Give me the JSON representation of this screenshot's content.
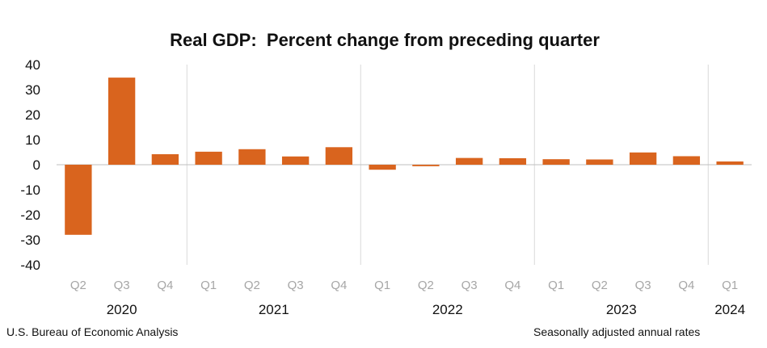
{
  "chart_data": {
    "type": "bar",
    "title": "Real GDP:  Percent change from preceding quarter",
    "xlabel": "",
    "ylabel": "",
    "ylim": [
      -40,
      40
    ],
    "yticks": [
      40,
      30,
      20,
      10,
      0,
      -10,
      -20,
      -30,
      -40
    ],
    "categories": [
      "Q2",
      "Q3",
      "Q4",
      "Q1",
      "Q2",
      "Q3",
      "Q4",
      "Q1",
      "Q2",
      "Q3",
      "Q4",
      "Q1",
      "Q2",
      "Q3",
      "Q4",
      "Q1"
    ],
    "years": [
      "2020",
      "2020",
      "2020",
      "2021",
      "2021",
      "2021",
      "2021",
      "2022",
      "2022",
      "2022",
      "2022",
      "2023",
      "2023",
      "2023",
      "2023",
      "2024"
    ],
    "year_labels": [
      "2020",
      "2021",
      "2022",
      "2023",
      "2024"
    ],
    "values": [
      -28.0,
      34.8,
      4.2,
      5.2,
      6.2,
      3.3,
      7.0,
      -2.0,
      -0.6,
      2.7,
      2.6,
      2.2,
      2.1,
      4.9,
      3.4,
      1.3
    ],
    "bar_color": "#d9641e",
    "grid": false,
    "legend": "none"
  },
  "source": "U.S. Bureau of Economic Analysis",
  "note": "Seasonally adjusted annual rates"
}
